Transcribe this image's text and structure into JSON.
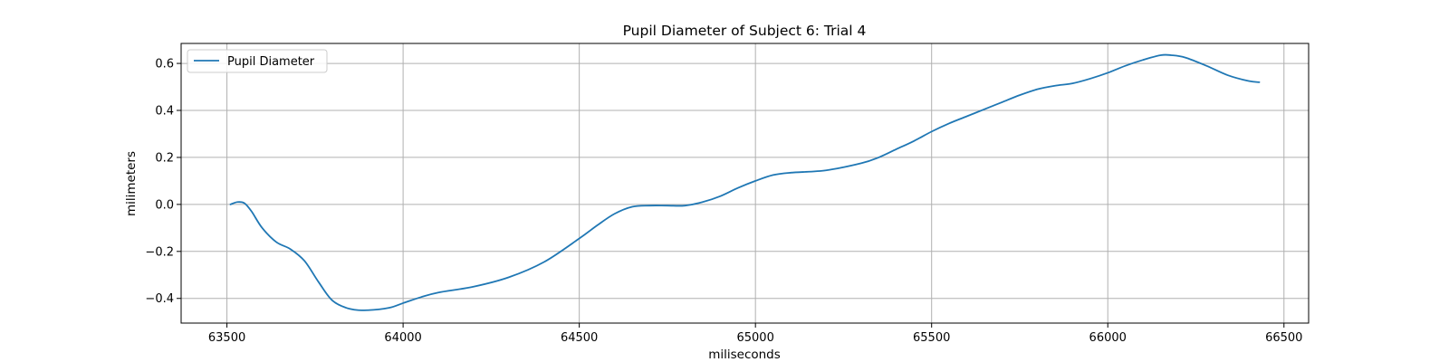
{
  "chart_data": {
    "type": "line",
    "title": "Pupil Diameter of Subject 6: Trial 4",
    "xlabel": "miliseconds",
    "ylabel": "milimeters",
    "xlim": [
      63370,
      66570
    ],
    "ylim": [
      -0.505,
      0.685
    ],
    "x_ticks": [
      63500,
      64000,
      64500,
      65000,
      65500,
      66000,
      66500
    ],
    "y_ticks": [
      -0.4,
      -0.2,
      0.0,
      0.2,
      0.4,
      0.6
    ],
    "x_tick_labels": [
      "63500",
      "64000",
      "64500",
      "65000",
      "65500",
      "66000",
      "66500"
    ],
    "y_tick_labels": [
      "−0.4",
      "−0.2",
      "0.0",
      "0.2",
      "0.4",
      "0.6"
    ],
    "grid": true,
    "legend_position": "upper-left",
    "series": [
      {
        "name": "Pupil Diameter",
        "color": "#1f77b4",
        "x": [
          63510,
          63530,
          63550,
          63570,
          63600,
          63640,
          63680,
          63720,
          63760,
          63800,
          63850,
          63900,
          63960,
          64000,
          64050,
          64100,
          64200,
          64300,
          64400,
          64500,
          64550,
          64600,
          64650,
          64700,
          64750,
          64800,
          64850,
          64900,
          64950,
          65000,
          65050,
          65100,
          65200,
          65300,
          65350,
          65400,
          65450,
          65500,
          65550,
          65600,
          65650,
          65700,
          65750,
          65800,
          65850,
          65900,
          65950,
          66000,
          66050,
          66100,
          66150,
          66180,
          66220,
          66280,
          66340,
          66400,
          66430
        ],
        "y": [
          0.0,
          0.01,
          0.005,
          -0.03,
          -0.1,
          -0.16,
          -0.19,
          -0.24,
          -0.33,
          -0.41,
          -0.445,
          -0.45,
          -0.44,
          -0.42,
          -0.395,
          -0.375,
          -0.35,
          -0.31,
          -0.245,
          -0.145,
          -0.09,
          -0.04,
          -0.01,
          -0.005,
          -0.005,
          -0.005,
          0.01,
          0.035,
          0.07,
          0.1,
          0.125,
          0.135,
          0.145,
          0.175,
          0.2,
          0.235,
          0.27,
          0.31,
          0.345,
          0.375,
          0.405,
          0.435,
          0.465,
          0.49,
          0.505,
          0.515,
          0.535,
          0.56,
          0.59,
          0.615,
          0.635,
          0.635,
          0.625,
          0.59,
          0.55,
          0.525,
          0.52
        ]
      }
    ]
  }
}
